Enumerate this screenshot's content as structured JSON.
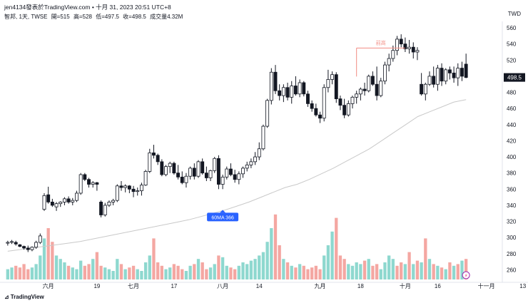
{
  "header": {
    "line1": "jen4134發表於TradingView.com • 十月 31, 2023 20:51 UTC+8",
    "symbol": "智邦, 1天, TWSE",
    "open": "開=515",
    "high": "高=528",
    "low": "低=497.5",
    "close": "收=498.5",
    "volume": "成交量4.32M"
  },
  "currency_label": "TWD",
  "last_price_tag": "498.5",
  "annotations": {
    "ma_tag": "60MA 366",
    "prev_high": "前高"
  },
  "brand": "TradingView",
  "colors": {
    "up_volume": "#8ed8cf",
    "down_volume": "#f4a7a2",
    "candle": "#131722",
    "ma_line": "#c9c9c9",
    "ma_tag_bg": "#2962ff",
    "prev_high_line": "#f28b82",
    "price_tag_bg": "#131722"
  },
  "chart_data": {
    "type": "candlestick",
    "y_axis": {
      "ticks": [
        260,
        280,
        300,
        320,
        340,
        360,
        380,
        400,
        420,
        440,
        460,
        480,
        500,
        520,
        540,
        560
      ],
      "range": [
        248,
        568
      ]
    },
    "x_axis": {
      "tick_labels": [
        "六月",
        "19",
        "七月",
        "17",
        "八月",
        "14",
        "九月",
        "18",
        "十月",
        "16",
        "十一月",
        "13"
      ],
      "tick_bars": [
        10,
        22,
        31,
        41,
        53,
        62,
        77,
        87,
        98,
        106,
        118,
        127
      ]
    },
    "candles": [
      [
        293,
        296,
        290,
        294
      ],
      [
        294,
        297,
        292,
        295
      ],
      [
        294,
        296,
        290,
        292
      ],
      [
        291,
        292,
        288,
        289
      ],
      [
        289,
        290,
        285,
        287
      ],
      [
        287,
        290,
        282,
        285
      ],
      [
        285,
        289,
        283,
        288
      ],
      [
        288,
        296,
        286,
        294
      ],
      [
        294,
        305,
        292,
        302
      ],
      [
        335,
        355,
        333,
        352
      ],
      [
        353,
        363,
        342,
        344
      ],
      [
        344,
        348,
        338,
        340
      ],
      [
        338,
        344,
        333,
        342
      ],
      [
        342,
        345,
        338,
        344
      ],
      [
        344,
        350,
        340,
        348
      ],
      [
        348,
        351,
        342,
        344
      ],
      [
        344,
        349,
        340,
        346
      ],
      [
        346,
        358,
        344,
        355
      ],
      [
        355,
        380,
        353,
        378
      ],
      [
        378,
        380,
        370,
        372
      ],
      [
        372,
        374,
        362,
        366
      ],
      [
        366,
        370,
        362,
        368
      ],
      [
        368,
        369,
        358,
        366
      ],
      [
        344,
        346,
        325,
        328
      ],
      [
        328,
        343,
        326,
        340
      ],
      [
        340,
        346,
        338,
        344
      ],
      [
        344,
        348,
        340,
        346
      ],
      [
        346,
        366,
        344,
        364
      ],
      [
        364,
        370,
        358,
        362
      ],
      [
        362,
        366,
        356,
        364
      ],
      [
        364,
        365,
        355,
        360
      ],
      [
        360,
        364,
        350,
        357
      ],
      [
        357,
        362,
        352,
        358
      ],
      [
        358,
        368,
        352,
        365
      ],
      [
        365,
        384,
        364,
        382
      ],
      [
        382,
        410,
        380,
        405
      ],
      [
        405,
        415,
        398,
        402
      ],
      [
        402,
        404,
        390,
        394
      ],
      [
        394,
        397,
        376,
        378
      ],
      [
        378,
        390,
        376,
        388
      ],
      [
        388,
        394,
        380,
        392
      ],
      [
        392,
        394,
        378,
        380
      ],
      [
        380,
        390,
        372,
        375
      ],
      [
        375,
        382,
        366,
        368
      ],
      [
        368,
        380,
        362,
        376
      ],
      [
        376,
        388,
        372,
        386
      ],
      [
        386,
        392,
        372,
        376
      ],
      [
        376,
        396,
        374,
        394
      ],
      [
        394,
        398,
        378,
        380
      ],
      [
        380,
        388,
        370,
        374
      ],
      [
        374,
        384,
        370,
        383
      ],
      [
        383,
        400,
        380,
        398
      ],
      [
        398,
        402,
        360,
        366
      ],
      [
        366,
        378,
        360,
        375
      ],
      [
        375,
        388,
        372,
        385
      ],
      [
        385,
        392,
        376,
        378
      ],
      [
        378,
        384,
        368,
        372
      ],
      [
        372,
        382,
        366,
        379
      ],
      [
        379,
        388,
        374,
        386
      ],
      [
        386,
        394,
        382,
        390
      ],
      [
        390,
        398,
        386,
        394
      ],
      [
        394,
        406,
        390,
        400
      ],
      [
        400,
        418,
        396,
        410
      ],
      [
        410,
        440,
        408,
        438
      ],
      [
        438,
        472,
        436,
        470
      ],
      [
        470,
        510,
        465,
        505
      ],
      [
        505,
        514,
        478,
        482
      ],
      [
        482,
        490,
        470,
        476
      ],
      [
        476,
        490,
        468,
        486
      ],
      [
        486,
        492,
        470,
        474
      ],
      [
        474,
        494,
        466,
        488
      ],
      [
        488,
        500,
        476,
        478
      ],
      [
        478,
        496,
        474,
        492
      ],
      [
        492,
        494,
        475,
        478
      ],
      [
        478,
        482,
        462,
        466
      ],
      [
        466,
        470,
        456,
        460
      ],
      [
        460,
        466,
        450,
        452
      ],
      [
        452,
        456,
        442,
        448
      ],
      [
        448,
        490,
        444,
        486
      ],
      [
        486,
        508,
        480,
        496
      ],
      [
        496,
        506,
        490,
        502
      ],
      [
        502,
        505,
        467,
        472
      ],
      [
        472,
        476,
        458,
        464
      ],
      [
        464,
        472,
        448,
        452
      ],
      [
        452,
        470,
        450,
        466
      ],
      [
        466,
        476,
        460,
        474
      ],
      [
        474,
        482,
        466,
        478
      ],
      [
        478,
        486,
        470,
        484
      ],
      [
        484,
        492,
        476,
        482
      ],
      [
        482,
        502,
        480,
        500
      ],
      [
        500,
        506,
        488,
        490
      ],
      [
        490,
        512,
        470,
        476
      ],
      [
        476,
        498,
        474,
        494
      ],
      [
        494,
        518,
        490,
        514
      ],
      [
        514,
        528,
        506,
        522
      ],
      [
        522,
        538,
        518,
        532
      ],
      [
        532,
        550,
        526,
        546
      ],
      [
        546,
        552,
        536,
        540
      ],
      [
        540,
        548,
        530,
        534
      ],
      [
        534,
        545,
        528,
        536
      ],
      [
        536,
        542,
        522,
        530
      ],
      [
        530,
        536,
        520,
        532
      ],
      [
        490,
        504,
        476,
        478
      ],
      [
        478,
        492,
        470,
        490
      ],
      [
        490,
        506,
        488,
        500
      ],
      [
        500,
        512,
        486,
        490
      ],
      [
        490,
        514,
        482,
        510
      ],
      [
        510,
        516,
        488,
        494
      ],
      [
        494,
        510,
        490,
        508
      ],
      [
        508,
        512,
        496,
        504
      ],
      [
        504,
        512,
        492,
        498
      ],
      [
        498,
        516,
        488,
        510
      ],
      [
        510,
        518,
        494,
        500
      ],
      [
        515,
        528,
        497.5,
        498.5
      ]
    ],
    "ma60": [
      283,
      285,
      287,
      289,
      291,
      293,
      295,
      298,
      301,
      304,
      307,
      310,
      313,
      316,
      319,
      322,
      326,
      330,
      334,
      339,
      344,
      350,
      356,
      362,
      366,
      372,
      379,
      386,
      394,
      402,
      410,
      420,
      430,
      440,
      450,
      456,
      462,
      468,
      471
    ],
    "volume": {
      "max": 40,
      "values": [
        6,
        7,
        8,
        7,
        9,
        6,
        7,
        9,
        14,
        24,
        30,
        22,
        14,
        12,
        10,
        8,
        7,
        6,
        11,
        8,
        9,
        12,
        16,
        8,
        7,
        6,
        5,
        12,
        9,
        6,
        7,
        8,
        6,
        5,
        10,
        14,
        24,
        10,
        8,
        6,
        7,
        9,
        8,
        6,
        5,
        8,
        9,
        12,
        10,
        6,
        7,
        9,
        14,
        13,
        8,
        7,
        6,
        8,
        10,
        9,
        11,
        12,
        14,
        16,
        22,
        30,
        38,
        20,
        12,
        10,
        8,
        7,
        9,
        8,
        6,
        7,
        8,
        6,
        14,
        20,
        28,
        36,
        14,
        12,
        9,
        8,
        10,
        9,
        11,
        12,
        8,
        9,
        6,
        10,
        14,
        12,
        8,
        10,
        9,
        16,
        9,
        11,
        10,
        24,
        12,
        9,
        8,
        7,
        6,
        10,
        8,
        9,
        11,
        12
      ],
      "up": [
        1,
        1,
        0,
        0,
        0,
        0,
        1,
        1,
        1,
        1,
        0,
        0,
        1,
        1,
        1,
        0,
        1,
        1,
        1,
        0,
        0,
        1,
        0,
        0,
        1,
        1,
        1,
        1,
        0,
        1,
        0,
        0,
        1,
        1,
        1,
        1,
        0,
        0,
        0,
        1,
        1,
        0,
        0,
        0,
        1,
        1,
        0,
        1,
        0,
        0,
        1,
        1,
        0,
        1,
        1,
        0,
        0,
        1,
        1,
        1,
        1,
        1,
        1,
        1,
        1,
        1,
        0,
        0,
        1,
        0,
        1,
        0,
        1,
        0,
        0,
        0,
        0,
        0,
        1,
        1,
        1,
        0,
        0,
        0,
        1,
        1,
        1,
        1,
        0,
        1,
        0,
        0,
        1,
        1,
        1,
        1,
        0,
        0,
        1,
        0,
        1,
        0,
        1,
        0,
        1,
        0,
        1,
        0,
        1,
        0,
        1,
        0,
        1,
        0
      ]
    },
    "prev_high_level": 535,
    "ma_tag_bar": 53
  }
}
